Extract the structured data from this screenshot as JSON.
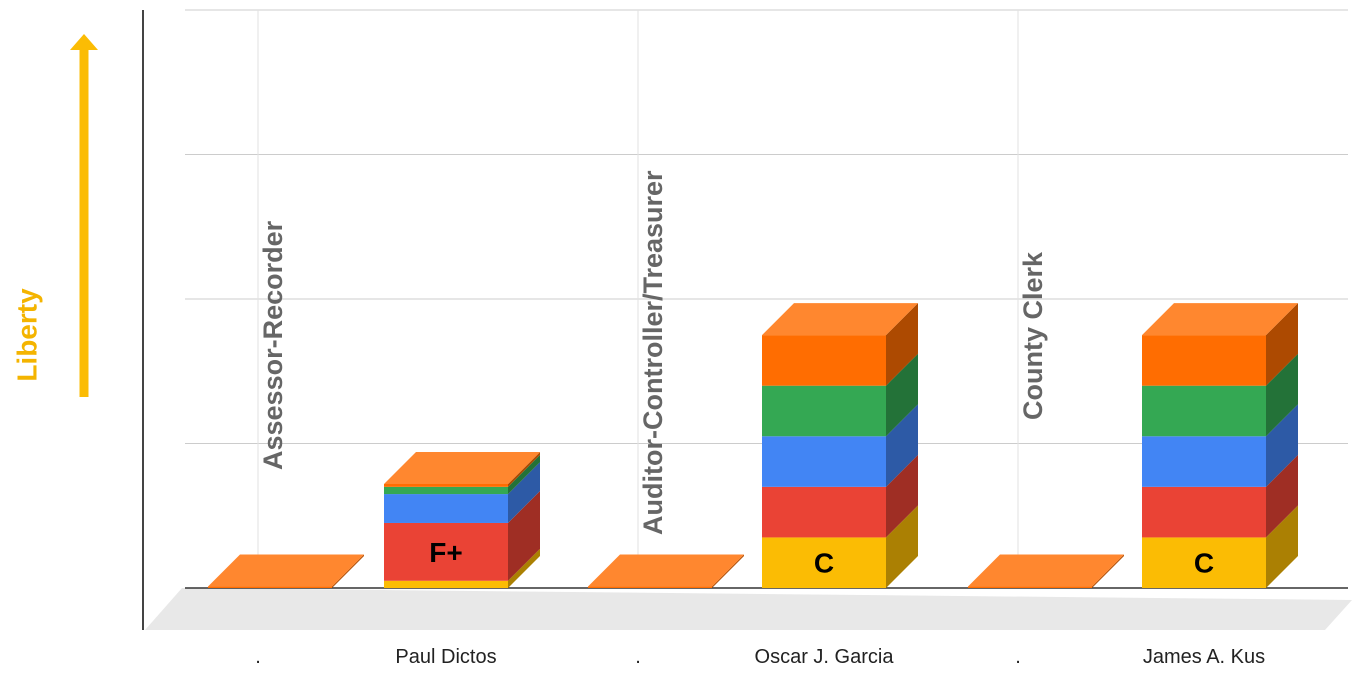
{
  "yaxis_title": "Liberty",
  "colors": {
    "axis_title": "#f4b400",
    "arrow": "#fbbc04",
    "gridline": "#cccccc",
    "floor": "#e8e8e8",
    "category_label": "#666666",
    "tick_label": "#222222",
    "grade_text": "#000000"
  },
  "chart_data": {
    "type": "bar",
    "stacked": true,
    "three_d": true,
    "categories": [
      ".",
      "Paul Dictos",
      ".",
      "Oscar J. Garcia",
      ".",
      "James A. Kus"
    ],
    "ylim": [
      0,
      4
    ],
    "grid": true,
    "series": [
      {
        "color": "#fbbc04",
        "values": [
          0,
          0.05,
          0,
          0.35,
          0,
          0.35
        ]
      },
      {
        "color": "#ea4335",
        "values": [
          0,
          0.4,
          0,
          0.35,
          0,
          0.35
        ]
      },
      {
        "color": "#4285f4",
        "values": [
          0,
          0.2,
          0,
          0.35,
          0,
          0.35
        ]
      },
      {
        "color": "#34a853",
        "values": [
          0,
          0.05,
          0,
          0.35,
          0,
          0.35
        ]
      },
      {
        "color": "#ff6d01",
        "values": [
          0.01,
          0.02,
          0.01,
          0.35,
          0.01,
          0.35
        ]
      }
    ],
    "annotations": [
      {
        "category_index": 1,
        "text": "F+",
        "series_index": 1
      },
      {
        "category_index": 3,
        "text": "C",
        "series_index": 0
      },
      {
        "category_index": 5,
        "text": "C",
        "series_index": 0
      }
    ],
    "section_labels": [
      {
        "text": "Assessor-Recorder",
        "category_index": 0
      },
      {
        "text": "Auditor-Controller/Treasurer",
        "category_index": 2
      },
      {
        "text": "County Clerk",
        "category_index": 4
      }
    ]
  }
}
